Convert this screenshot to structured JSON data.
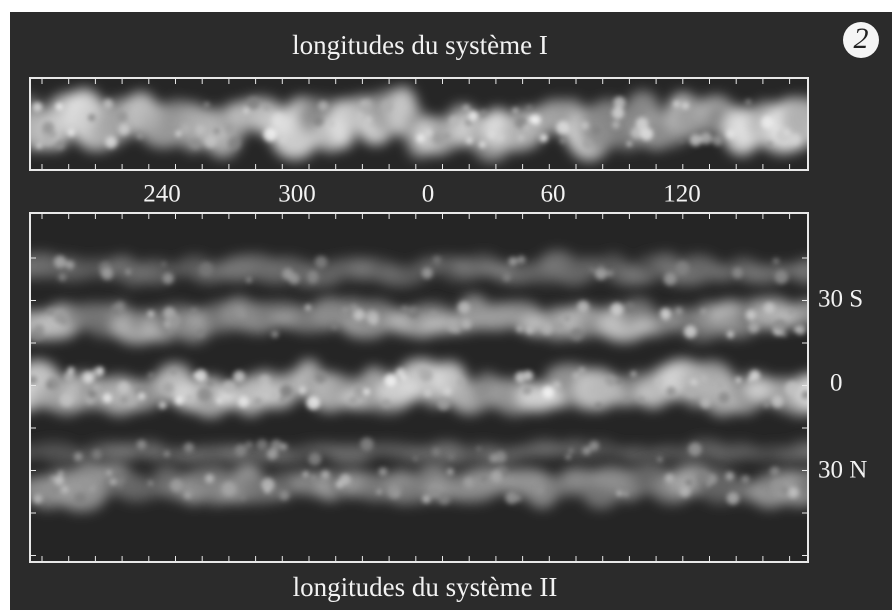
{
  "figure": {
    "badge": "2",
    "top_panel": {
      "title": "longitudes du système I",
      "longitude_labels": [
        "240",
        "300",
        "0",
        "60",
        "120"
      ]
    },
    "bottom_panel": {
      "title": "longitudes du système II",
      "latitude_labels": [
        "30 S",
        "0",
        "30 N"
      ]
    }
  }
}
